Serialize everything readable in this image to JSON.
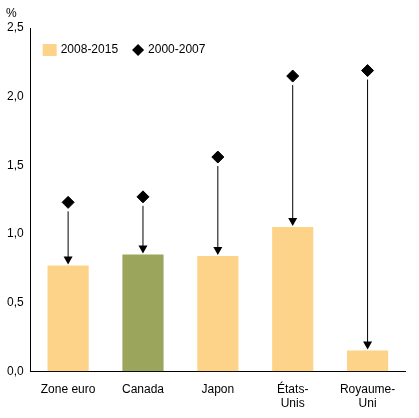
{
  "chart_data": {
    "type": "bar",
    "ylabel": "%",
    "categories": [
      "Zone euro",
      "Canada",
      "Japon",
      "États-Unis",
      "Royaume-Uni"
    ],
    "series": [
      {
        "name": "2008-2015",
        "type": "bar",
        "colors": [
          "#fdd38a",
          "#9ba55b",
          "#fdd38a",
          "#fdd38a",
          "#fdd38a"
        ],
        "values": [
          0.77,
          0.85,
          0.84,
          1.05,
          0.15
        ]
      },
      {
        "name": "2000-2007",
        "type": "scatter",
        "marker": "diamond",
        "color": "#000000",
        "values": [
          1.23,
          1.27,
          1.56,
          2.15,
          2.19
        ]
      }
    ],
    "ylim": [
      0,
      2.5
    ],
    "yticks": [
      {
        "value": 0,
        "label": "0,0"
      },
      {
        "value": 0.5,
        "label": "0,5"
      },
      {
        "value": 1,
        "label": "1,0"
      },
      {
        "value": 1.5,
        "label": "1,5"
      },
      {
        "value": 2,
        "label": "2,0"
      },
      {
        "value": 2.5,
        "label": "2,5"
      }
    ],
    "grid": false,
    "legend": "upper left"
  }
}
